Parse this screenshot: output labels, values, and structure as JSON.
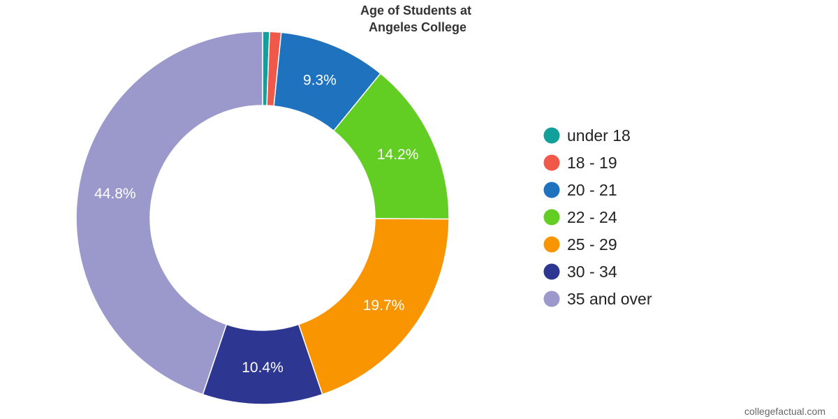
{
  "chart_data": {
    "type": "pie",
    "title_lines": [
      "Age of Students at",
      "Angeles College"
    ],
    "categories": [
      "under 18",
      "18 - 19",
      "20 - 21",
      "22 - 24",
      "25 - 29",
      "30 - 34",
      "35 and over"
    ],
    "values": [
      0.6,
      1.0,
      9.3,
      14.2,
      19.7,
      10.4,
      44.8
    ],
    "data_labels": [
      "",
      "",
      "9.3%",
      "14.2%",
      "19.7%",
      "10.4%",
      "44.8%"
    ],
    "colors": [
      "#12a19a",
      "#f0594a",
      "#1f72be",
      "#62cd23",
      "#f89500",
      "#2d3792",
      "#9b99cb"
    ],
    "donut": true,
    "legend_position": "right",
    "unit": "%"
  },
  "watermark": "collegefactual.com"
}
